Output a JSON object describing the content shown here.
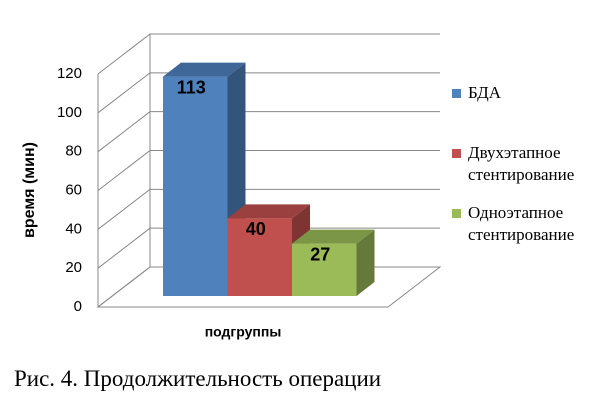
{
  "chart_data": {
    "type": "bar3d",
    "caption": "Рис. 4. Продолжительность операции",
    "ylabel": "время (мин)",
    "xlabel": "подгруппы",
    "categories": [
      "подгруппы"
    ],
    "series": [
      {
        "name": "БДА",
        "color": "#4f81bd",
        "values": [
          113
        ]
      },
      {
        "name": "Двухэтапное стентирование",
        "color": "#c0504d",
        "values": [
          40
        ]
      },
      {
        "name": "Одноэтапное стентирование",
        "color": "#9bbb59",
        "values": [
          27
        ]
      }
    ],
    "ylim": [
      0,
      120
    ],
    "yticks": [
      0,
      20,
      40,
      60,
      80,
      100,
      120
    ],
    "grid": true,
    "legend": "right"
  }
}
